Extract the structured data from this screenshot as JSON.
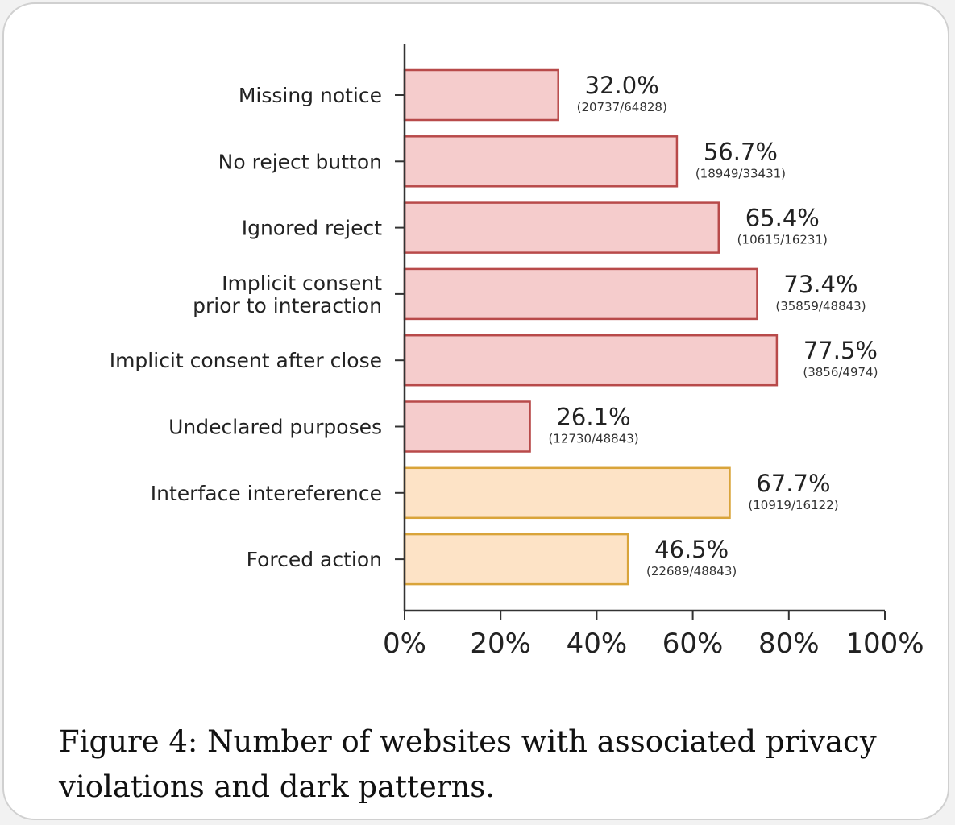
{
  "chart_data": {
    "type": "bar",
    "orientation": "horizontal",
    "categories": [
      "Missing notice",
      "No reject button",
      "Ignored reject",
      "Implicit consent\nprior to interaction",
      "Implicit consent after close",
      "Undeclared purposes",
      "Interface intereference",
      "Forced action"
    ],
    "values": [
      32.0,
      56.7,
      65.4,
      73.4,
      77.5,
      26.1,
      67.7,
      46.5
    ],
    "value_labels": [
      "32.0%",
      "56.7%",
      "65.4%",
      "73.4%",
      "77.5%",
      "26.1%",
      "67.7%",
      "46.5%"
    ],
    "count_labels": [
      "(20737/64828)",
      "(18949/33431)",
      "(10615/16231)",
      "(35859/48843)",
      "(3856/4974)",
      "(12730/48843)",
      "(10919/16122)",
      "(22689/48843)"
    ],
    "groups": [
      "violation",
      "violation",
      "violation",
      "violation",
      "violation",
      "violation",
      "dark_pattern",
      "dark_pattern"
    ],
    "group_colors": {
      "violation": {
        "fill": "#f5cccc",
        "stroke": "#b84a4a"
      },
      "dark_pattern": {
        "fill": "#fde3c6",
        "stroke": "#d9a43a"
      }
    },
    "xlim": [
      0,
      100
    ],
    "xticks": [
      "0%",
      "20%",
      "40%",
      "60%",
      "80%",
      "100%"
    ],
    "xlabel": "",
    "ylabel": "",
    "grid": false
  },
  "caption": "Figure 4: Number of websites with associated privacy violations and dark patterns."
}
